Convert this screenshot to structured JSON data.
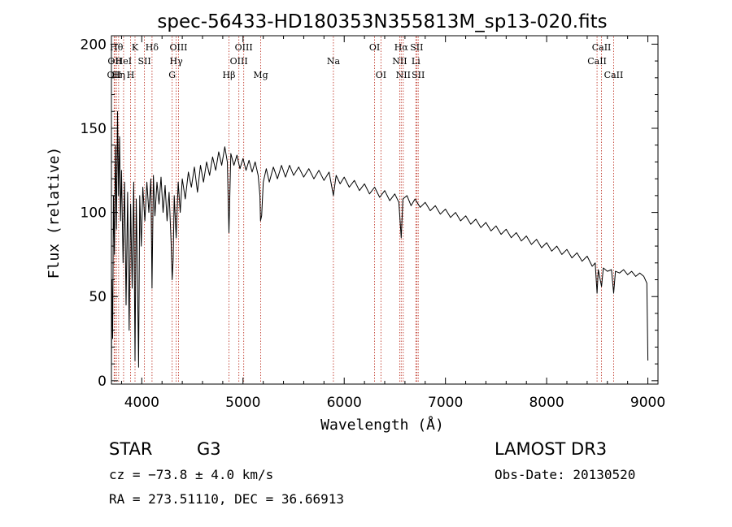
{
  "chart_data": {
    "type": "line",
    "title": "spec-56433-HD180353N355813M_sp13-020.fits",
    "xlabel": "Wavelength (Å)",
    "ylabel": "Flux (relative)",
    "xlim": [
      3700,
      9100
    ],
    "ylim": [
      -2,
      205
    ],
    "xticks": [
      {
        "value": 4000,
        "label": "4000"
      },
      {
        "value": 5000,
        "label": "5000"
      },
      {
        "value": 6000,
        "label": "6000"
      },
      {
        "value": 7000,
        "label": "7000"
      },
      {
        "value": 8000,
        "label": "8000"
      },
      {
        "value": 9000,
        "label": "9000"
      }
    ],
    "yticks": [
      {
        "value": 0,
        "label": "0"
      },
      {
        "value": 50,
        "label": "50"
      },
      {
        "value": 100,
        "label": "100"
      },
      {
        "value": 150,
        "label": "150"
      },
      {
        "value": 200,
        "label": "200"
      }
    ],
    "series": [
      {
        "name": "flux",
        "color": "#000000",
        "points": [
          [
            3700,
            5
          ],
          [
            3705,
            60
          ],
          [
            3712,
            25
          ],
          [
            3720,
            110
          ],
          [
            3730,
            75
          ],
          [
            3740,
            140
          ],
          [
            3750,
            90
          ],
          [
            3760,
            160
          ],
          [
            3770,
            110
          ],
          [
            3780,
            145
          ],
          [
            3790,
            95
          ],
          [
            3800,
            125
          ],
          [
            3815,
            70
          ],
          [
            3830,
            118
          ],
          [
            3845,
            45
          ],
          [
            3860,
            112
          ],
          [
            3875,
            30
          ],
          [
            3890,
            105
          ],
          [
            3905,
            55
          ],
          [
            3920,
            118
          ],
          [
            3933,
            12
          ],
          [
            3945,
            108
          ],
          [
            3958,
            60
          ],
          [
            3968,
            8
          ],
          [
            3980,
            110
          ],
          [
            3995,
            80
          ],
          [
            4010,
            115
          ],
          [
            4030,
            95
          ],
          [
            4050,
            118
          ],
          [
            4070,
            100
          ],
          [
            4090,
            120
          ],
          [
            4101,
            55
          ],
          [
            4115,
            122
          ],
          [
            4130,
            98
          ],
          [
            4150,
            118
          ],
          [
            4170,
            105
          ],
          [
            4190,
            121
          ],
          [
            4210,
            100
          ],
          [
            4230,
            116
          ],
          [
            4250,
            95
          ],
          [
            4270,
            112
          ],
          [
            4290,
            82
          ],
          [
            4300,
            60
          ],
          [
            4310,
            72
          ],
          [
            4320,
            110
          ],
          [
            4340,
            85
          ],
          [
            4360,
            118
          ],
          [
            4380,
            100
          ],
          [
            4400,
            120
          ],
          [
            4430,
            108
          ],
          [
            4460,
            124
          ],
          [
            4490,
            115
          ],
          [
            4520,
            127
          ],
          [
            4550,
            112
          ],
          [
            4580,
            128
          ],
          [
            4610,
            118
          ],
          [
            4640,
            130
          ],
          [
            4670,
            122
          ],
          [
            4700,
            133
          ],
          [
            4730,
            125
          ],
          [
            4760,
            136
          ],
          [
            4790,
            128
          ],
          [
            4820,
            139
          ],
          [
            4845,
            130
          ],
          [
            4861,
            88
          ],
          [
            4880,
            135
          ],
          [
            4910,
            128
          ],
          [
            4940,
            134
          ],
          [
            4970,
            126
          ],
          [
            5000,
            132
          ],
          [
            5030,
            125
          ],
          [
            5060,
            131
          ],
          [
            5090,
            124
          ],
          [
            5120,
            130
          ],
          [
            5150,
            122
          ],
          [
            5167,
            110
          ],
          [
            5173,
            95
          ],
          [
            5184,
            98
          ],
          [
            5200,
            118
          ],
          [
            5230,
            126
          ],
          [
            5260,
            118
          ],
          [
            5300,
            127
          ],
          [
            5340,
            120
          ],
          [
            5380,
            128
          ],
          [
            5420,
            121
          ],
          [
            5460,
            128
          ],
          [
            5500,
            122
          ],
          [
            5550,
            127
          ],
          [
            5600,
            121
          ],
          [
            5650,
            126
          ],
          [
            5700,
            120
          ],
          [
            5750,
            125
          ],
          [
            5800,
            119
          ],
          [
            5850,
            124
          ],
          [
            5893,
            110
          ],
          [
            5920,
            122
          ],
          [
            5960,
            117
          ],
          [
            6000,
            121
          ],
          [
            6050,
            115
          ],
          [
            6100,
            119
          ],
          [
            6150,
            113
          ],
          [
            6200,
            117
          ],
          [
            6250,
            111
          ],
          [
            6300,
            115
          ],
          [
            6350,
            109
          ],
          [
            6400,
            113
          ],
          [
            6450,
            107
          ],
          [
            6500,
            111
          ],
          [
            6540,
            106
          ],
          [
            6563,
            85
          ],
          [
            6580,
            108
          ],
          [
            6620,
            110
          ],
          [
            6660,
            104
          ],
          [
            6700,
            108
          ],
          [
            6750,
            103
          ],
          [
            6800,
            106
          ],
          [
            6850,
            101
          ],
          [
            6900,
            104
          ],
          [
            6950,
            99
          ],
          [
            7000,
            102
          ],
          [
            7050,
            97
          ],
          [
            7100,
            100
          ],
          [
            7150,
            95
          ],
          [
            7200,
            98
          ],
          [
            7250,
            93
          ],
          [
            7300,
            96
          ],
          [
            7350,
            91
          ],
          [
            7400,
            94
          ],
          [
            7450,
            89
          ],
          [
            7500,
            92
          ],
          [
            7550,
            87
          ],
          [
            7600,
            90
          ],
          [
            7650,
            85
          ],
          [
            7700,
            88
          ],
          [
            7750,
            83
          ],
          [
            7800,
            86
          ],
          [
            7850,
            81
          ],
          [
            7900,
            84
          ],
          [
            7950,
            79
          ],
          [
            8000,
            82
          ],
          [
            8050,
            77
          ],
          [
            8100,
            80
          ],
          [
            8150,
            75
          ],
          [
            8200,
            78
          ],
          [
            8250,
            73
          ],
          [
            8300,
            76
          ],
          [
            8350,
            71
          ],
          [
            8400,
            74
          ],
          [
            8450,
            68
          ],
          [
            8480,
            70
          ],
          [
            8498,
            52
          ],
          [
            8510,
            66
          ],
          [
            8542,
            56
          ],
          [
            8560,
            67
          ],
          [
            8600,
            65
          ],
          [
            8640,
            66
          ],
          [
            8662,
            52
          ],
          [
            8680,
            65
          ],
          [
            8720,
            64
          ],
          [
            8760,
            66
          ],
          [
            8800,
            63
          ],
          [
            8840,
            65
          ],
          [
            8880,
            62
          ],
          [
            8920,
            64
          ],
          [
            8960,
            62
          ],
          [
            8990,
            58
          ],
          [
            9000,
            12
          ]
        ]
      }
    ],
    "line_annotations": [
      {
        "wavelength": 3727,
        "label": "OII",
        "row": 3
      },
      {
        "wavelength": 3734,
        "label": "OII",
        "row": 2
      },
      {
        "wavelength": 3750,
        "label": "Hθ",
        "row": 1
      },
      {
        "wavelength": 3771,
        "label": "Hη",
        "row": 3
      },
      {
        "wavelength": 3820,
        "label": "HeI",
        "row": 2
      },
      {
        "wavelength": 3889,
        "label": "H",
        "row": 3
      },
      {
        "wavelength": 3933,
        "label": "K",
        "row": 1
      },
      {
        "wavelength": 4026,
        "label": "SII",
        "row": 2
      },
      {
        "wavelength": 4101,
        "label": "Hδ",
        "row": 1
      },
      {
        "wavelength": 4300,
        "label": "G",
        "row": 3
      },
      {
        "wavelength": 4340,
        "label": "Hγ",
        "row": 2
      },
      {
        "wavelength": 4363,
        "label": "OIII",
        "row": 1
      },
      {
        "wavelength": 4861,
        "label": "Hβ",
        "row": 3
      },
      {
        "wavelength": 4959,
        "label": "OIII",
        "row": 2
      },
      {
        "wavelength": 5007,
        "label": "OIII",
        "row": 1
      },
      {
        "wavelength": 5175,
        "label": "Mg",
        "row": 3
      },
      {
        "wavelength": 5893,
        "label": "Na",
        "row": 2
      },
      {
        "wavelength": 6300,
        "label": "OI",
        "row": 1
      },
      {
        "wavelength": 6363,
        "label": "OI",
        "row": 3
      },
      {
        "wavelength": 6548,
        "label": "NII",
        "row": 2
      },
      {
        "wavelength": 6563,
        "label": "Hα",
        "row": 1
      },
      {
        "wavelength": 6583,
        "label": "NII",
        "row": 3
      },
      {
        "wavelength": 6708,
        "label": "Li",
        "row": 2
      },
      {
        "wavelength": 6716,
        "label": "SII",
        "row": 1
      },
      {
        "wavelength": 6731,
        "label": "SII",
        "row": 3
      },
      {
        "wavelength": 8498,
        "label": "CaII",
        "row": 2
      },
      {
        "wavelength": 8542,
        "label": "CaII",
        "row": 1
      },
      {
        "wavelength": 8662,
        "label": "CaII",
        "row": 3
      }
    ]
  },
  "info": {
    "object_class": "STAR",
    "subclass": "G3",
    "redshift_line": "cz = −73.8 ± 4.0 km/s",
    "coords_line": "RA = 273.51110, DEC =  36.66913",
    "survey": "LAMOST DR3",
    "obs_date": "Obs-Date: 20130520"
  }
}
